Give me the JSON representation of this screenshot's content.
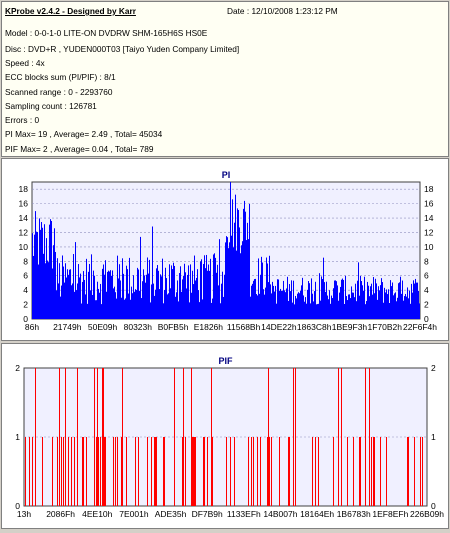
{
  "app": {
    "title": "KProbe v2.4.2 - Designed by Karr",
    "date": "Date : 12/10/2008 1:23:12 PM"
  },
  "info_lines": [
    "Model : 0-0-1-0 LITE-ON DVDRW SHM-165H6S HS0E",
    "Disc : DVD+R , YUDEN000T03 [Taiyo Yuden Company Limited]",
    "Speed : 4x",
    "ECC blocks sum (PI/PIF) : 8/1",
    "Scanned range : 0 - 2293760",
    "Sampling count : 126781",
    "Errors : 0",
    "PI Max= 19 , Average= 2.49 , Total= 45034",
    "PIF Max= 2 , Average= 0.04 , Total= 789"
  ],
  "chart_data": [
    {
      "type": "bar",
      "title": "PI",
      "ylim": [
        0,
        19
      ],
      "y_ticks": [
        "0",
        "2",
        "4",
        "6",
        "8",
        "10",
        "12",
        "14",
        "16",
        "18"
      ],
      "x_tick_labels": [
        "86h",
        "21749h",
        "50E09h",
        "80323h",
        "B0FB5h",
        "E1826h",
        "11568Bh",
        "14DE22h",
        "1863C8h",
        "1BE9F3h",
        "1F70B2h",
        "22F6F4h"
      ],
      "color": "#0000ff",
      "grid": true,
      "max": 19,
      "average": 2.49,
      "total": 45034
    },
    {
      "type": "bar",
      "title": "PIF",
      "ylim": [
        0,
        2
      ],
      "y_ticks": [
        "0",
        "1",
        "2"
      ],
      "x_tick_labels": [
        "13h",
        "2086Fh",
        "4EE10h",
        "7E001h",
        "ADE35h",
        "DF7B9h",
        "1133EFh",
        "14B007h",
        "18164Eh",
        "1B6783h",
        "1EF8EFh",
        "226B09h"
      ],
      "color": "#ff0000",
      "grid": true,
      "max": 2,
      "average": 0.04,
      "total": 789
    }
  ]
}
